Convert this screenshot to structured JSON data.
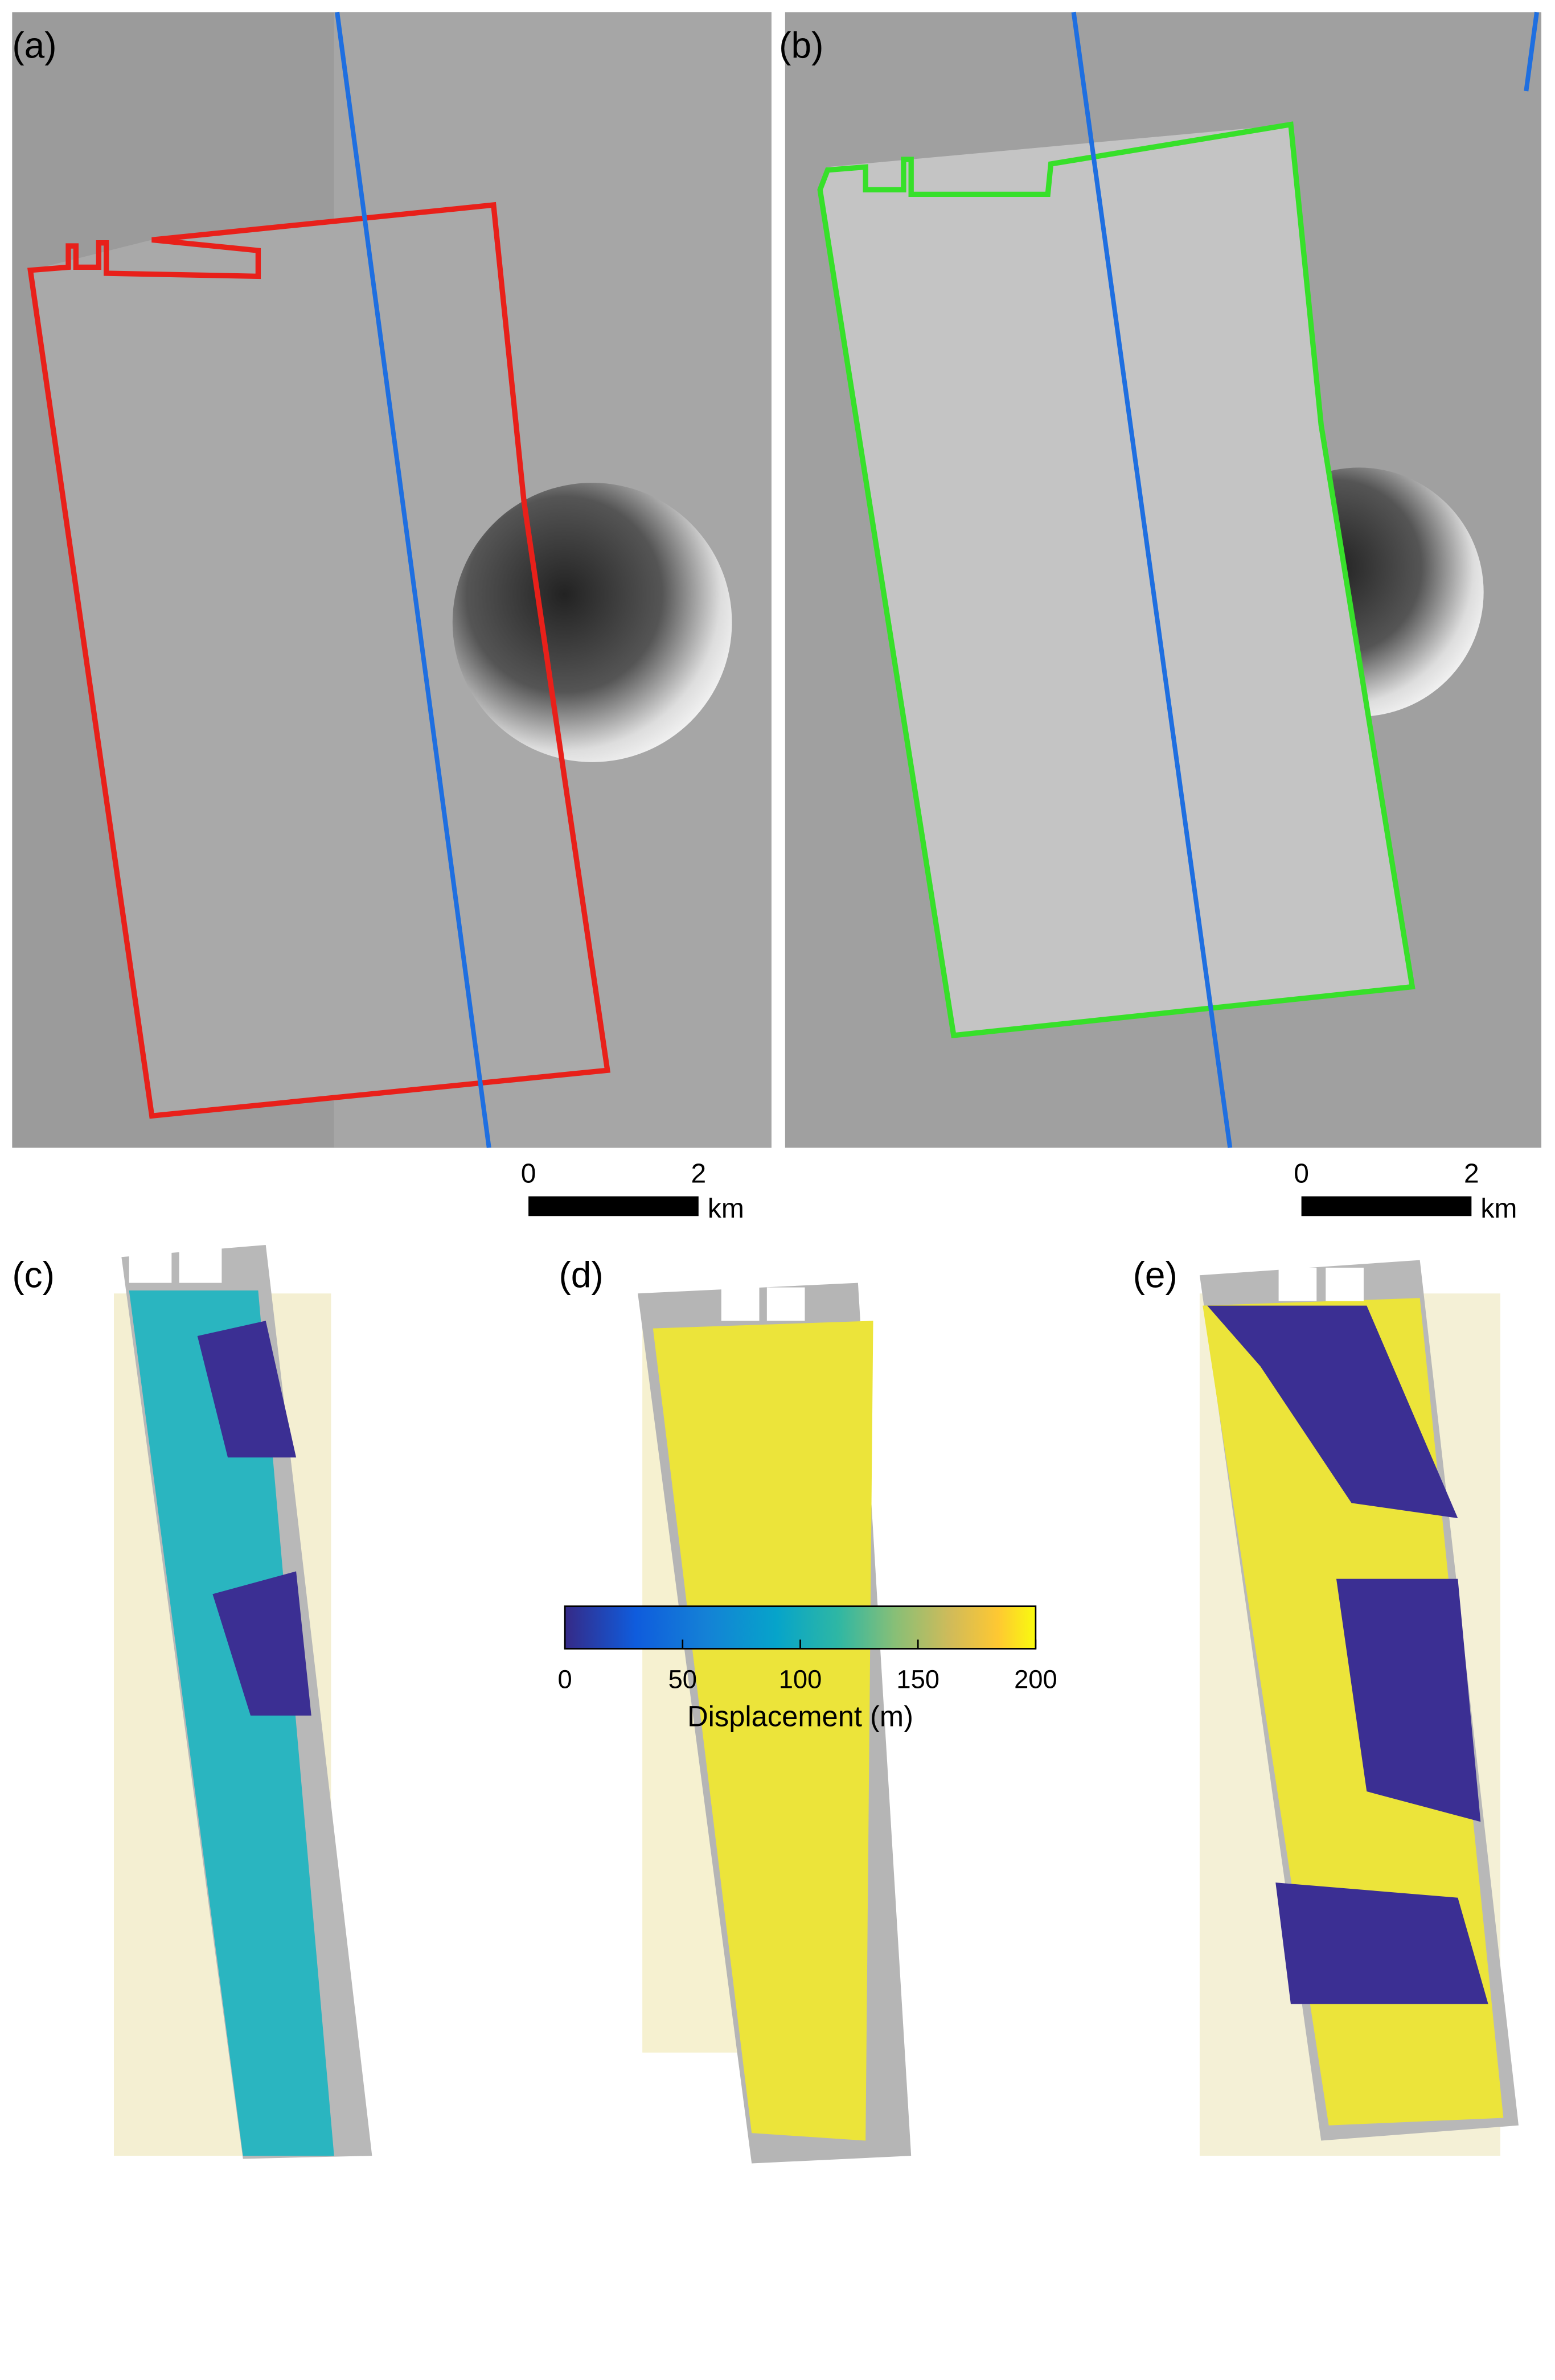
{
  "panels": {
    "a": "(a)",
    "b": "(b)",
    "c": "(c)",
    "d": "(d)",
    "e": "(e)"
  },
  "scalebars": [
    {
      "ticks": [
        0,
        2
      ],
      "unit": "km"
    },
    {
      "ticks": [
        0,
        2
      ],
      "unit": "km"
    }
  ],
  "colorbar": {
    "label": "Displacement (m)",
    "lim": [
      0,
      200
    ],
    "ticks": [
      0,
      50,
      100,
      150,
      200
    ]
  }
}
